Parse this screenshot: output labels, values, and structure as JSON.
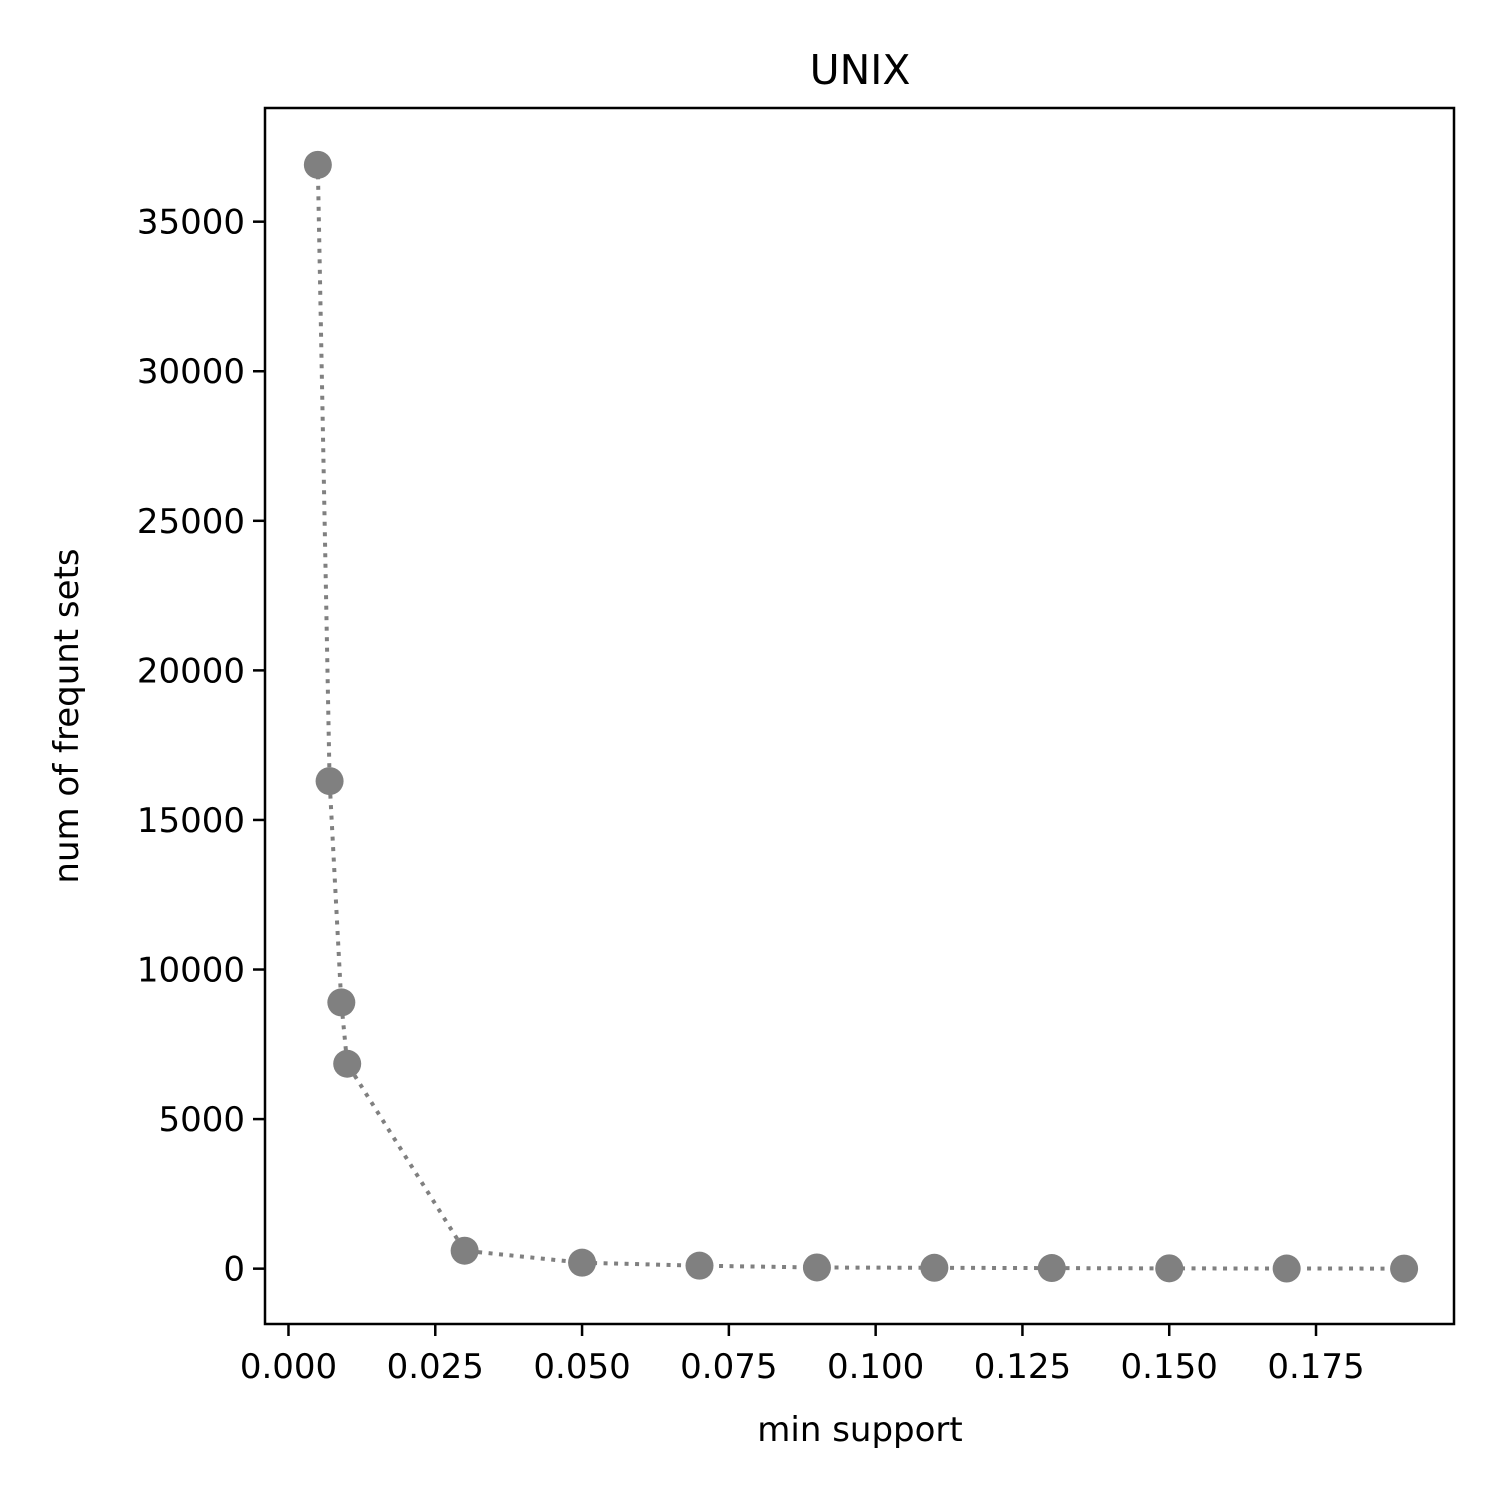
{
  "chart_data": {
    "type": "line",
    "title": "UNIX",
    "xlabel": "min support",
    "ylabel": "num of frequnt sets",
    "xlim": [
      -0.004,
      0.1985
    ],
    "ylim": [
      -1850,
      38800
    ],
    "x_ticks": [
      0.0,
      0.025,
      0.05,
      0.075,
      0.1,
      0.125,
      0.15,
      0.175
    ],
    "x_tick_labels": [
      "0.000",
      "0.025",
      "0.050",
      "0.075",
      "0.100",
      "0.125",
      "0.150",
      "0.175"
    ],
    "y_ticks": [
      0,
      5000,
      10000,
      15000,
      20000,
      25000,
      30000,
      35000
    ],
    "y_tick_labels": [
      "0",
      "5000",
      "10000",
      "15000",
      "20000",
      "25000",
      "30000",
      "35000"
    ],
    "grid": false,
    "series": [
      {
        "color": "#808080",
        "line_style": "dotted",
        "marker": "circle",
        "points": [
          {
            "x": 0.005,
            "y": 36900
          },
          {
            "x": 0.007,
            "y": 16300
          },
          {
            "x": 0.009,
            "y": 8900
          },
          {
            "x": 0.01,
            "y": 6850
          },
          {
            "x": 0.03,
            "y": 600
          },
          {
            "x": 0.05,
            "y": 200
          },
          {
            "x": 0.07,
            "y": 100
          },
          {
            "x": 0.09,
            "y": 40
          },
          {
            "x": 0.11,
            "y": 30
          },
          {
            "x": 0.13,
            "y": 20
          },
          {
            "x": 0.15,
            "y": 10
          },
          {
            "x": 0.17,
            "y": 5
          },
          {
            "x": 0.19,
            "y": 2
          }
        ]
      }
    ]
  }
}
